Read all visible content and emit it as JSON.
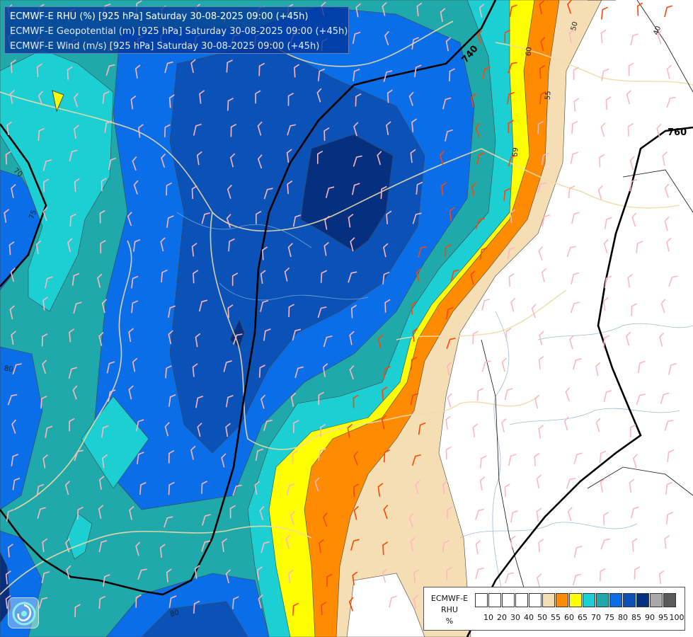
{
  "titles": [
    "ECMWF-E RHU (%) [925 hPa] Saturday 30-08-2025 09:00 (+45h)",
    "ECMWF-E Geopotential (m) [925 hPa] Saturday 30-08-2025 09:00 (+45h)",
    "ECMWF-E Wind (m/s) [925 hPa] Saturday 30-08-2025 09:00 (+45h)"
  ],
  "geopotential_labels": [
    "740",
    "760"
  ],
  "rhu_labels": [
    "50",
    "40",
    "60",
    "55",
    "59",
    "70",
    "75",
    "80",
    "80"
  ],
  "legend": {
    "title_lines": [
      "ECMWF-E",
      "RHU",
      "%"
    ],
    "ticks": [
      "10",
      "20",
      "30",
      "40",
      "50",
      "55",
      "60",
      "65",
      "70",
      "75",
      "80",
      "85",
      "90",
      "95",
      "100"
    ],
    "colors": [
      "#ffffff",
      "#ffffff",
      "#ffffff",
      "#ffffff",
      "#ffffff",
      "#f5deb3",
      "#ff8c00",
      "#ffff00",
      "#1bcfd2",
      "#20a9aa",
      "#0a6ee8",
      "#0b52b8",
      "#053080",
      "#a9a9a9",
      "#595959"
    ]
  },
  "colors": {
    "rhu_50_55": "#f5deb3",
    "rhu_55_60": "#ff8c00",
    "rhu_60_65": "#ffff00",
    "rhu_65_70": "#1bcfd2",
    "rhu_70_75": "#20a9aa",
    "rhu_75_80": "#0a6ee8",
    "rhu_80_85": "#0b52b8",
    "rhu_85_90": "#053080",
    "geopotential_line": "#000000",
    "barb_dry": "#ff4500",
    "barb_moist": "#ffb6c1"
  },
  "icons": [
    "ecmwf-logo-icon"
  ]
}
